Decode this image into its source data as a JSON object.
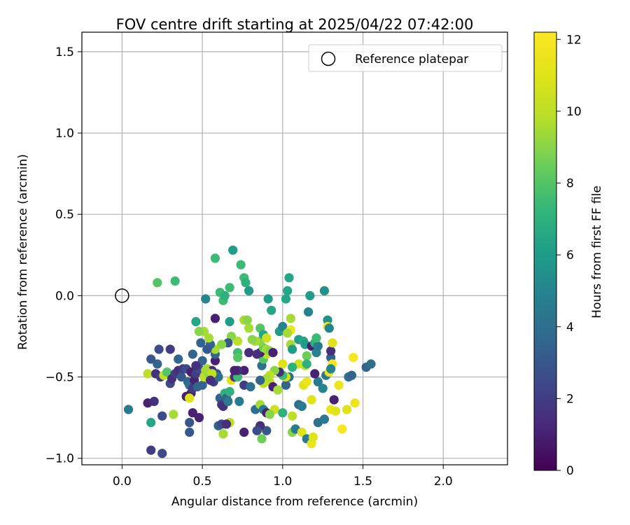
{
  "chart_data": {
    "type": "scatter",
    "title": "FOV centre drift starting at 2025/04/22 07:42:00",
    "xlabel": "Angular distance from reference (arcmin)",
    "ylabel": "Rotation from reference (arcmin)",
    "xlim": [
      -0.25,
      2.4
    ],
    "ylim": [
      -1.04,
      1.62
    ],
    "xticks": [
      0.0,
      0.5,
      1.0,
      1.5,
      2.0
    ],
    "xtick_labels": [
      "0.0",
      "0.5",
      "1.0",
      "1.5",
      "2.0"
    ],
    "yticks": [
      -1.0,
      -0.5,
      0.0,
      0.5,
      1.0,
      1.5
    ],
    "ytick_labels": [
      "−1.0",
      "−0.5",
      "0.0",
      "0.5",
      "1.0",
      "1.5"
    ],
    "grid": true,
    "legend": {
      "position": "top-right",
      "entries": [
        {
          "label": "Reference platepar",
          "marker": "open-circle"
        }
      ]
    },
    "reference_point": {
      "x": 0.0,
      "y": 0.0
    },
    "colorbar": {
      "label": "Hours from first FF file",
      "colormap": "viridis",
      "range": [
        0,
        12.2
      ],
      "ticks": [
        0,
        2,
        4,
        6,
        8,
        10,
        12
      ],
      "tick_labels": [
        "0",
        "2",
        "4",
        "6",
        "8",
        "10",
        "12"
      ]
    },
    "points": [
      {
        "x": 0.04,
        "y": -0.7,
        "h": 4.5
      },
      {
        "x": 0.16,
        "y": -0.66,
        "h": 1.0
      },
      {
        "x": 0.2,
        "y": -0.65,
        "h": 1.5
      },
      {
        "x": 0.18,
        "y": -0.95,
        "h": 2.0
      },
      {
        "x": 0.25,
        "y": -0.97,
        "h": 2.5
      },
      {
        "x": 0.18,
        "y": -0.78,
        "h": 6.5
      },
      {
        "x": 0.25,
        "y": -0.74,
        "h": 2.5
      },
      {
        "x": 0.32,
        "y": -0.73,
        "h": 9.5
      },
      {
        "x": 0.18,
        "y": -0.39,
        "h": 3.0
      },
      {
        "x": 0.22,
        "y": -0.42,
        "h": 3.5
      },
      {
        "x": 0.23,
        "y": -0.33,
        "h": 2.5
      },
      {
        "x": 0.3,
        "y": -0.33,
        "h": 2.0
      },
      {
        "x": 0.16,
        "y": -0.48,
        "h": 10.0
      },
      {
        "x": 0.21,
        "y": -0.48,
        "h": 1.5
      },
      {
        "x": 0.24,
        "y": -0.5,
        "h": 2.0
      },
      {
        "x": 0.26,
        "y": -0.49,
        "h": 10.0
      },
      {
        "x": 0.28,
        "y": -0.47,
        "h": 8.0
      },
      {
        "x": 0.3,
        "y": -0.54,
        "h": 2.5
      },
      {
        "x": 0.31,
        "y": -0.51,
        "h": 1.5
      },
      {
        "x": 0.33,
        "y": -0.48,
        "h": 2.0
      },
      {
        "x": 0.35,
        "y": -0.46,
        "h": 1.5
      },
      {
        "x": 0.35,
        "y": -0.39,
        "h": 3.5
      },
      {
        "x": 0.37,
        "y": -0.5,
        "h": 3.0
      },
      {
        "x": 0.38,
        "y": -0.45,
        "h": 2.0
      },
      {
        "x": 0.4,
        "y": -0.45,
        "h": 2.5
      },
      {
        "x": 0.41,
        "y": -0.53,
        "h": 3.5
      },
      {
        "x": 0.42,
        "y": -0.55,
        "h": 4.0
      },
      {
        "x": 0.43,
        "y": -0.47,
        "h": 1.0
      },
      {
        "x": 0.43,
        "y": -0.6,
        "h": 1.0
      },
      {
        "x": 0.44,
        "y": -0.57,
        "h": 2.0
      },
      {
        "x": 0.45,
        "y": -0.52,
        "h": 1.0
      },
      {
        "x": 0.46,
        "y": -0.48,
        "h": 2.0
      },
      {
        "x": 0.47,
        "y": -0.56,
        "h": 3.5
      },
      {
        "x": 0.48,
        "y": -0.45,
        "h": 2.5
      },
      {
        "x": 0.4,
        "y": -0.62,
        "h": 1.0
      },
      {
        "x": 0.42,
        "y": -0.63,
        "h": 11.0
      },
      {
        "x": 0.42,
        "y": -0.78,
        "h": 3.0
      },
      {
        "x": 0.42,
        "y": -0.84,
        "h": 3.0
      },
      {
        "x": 0.44,
        "y": -0.72,
        "h": 1.0
      },
      {
        "x": 0.48,
        "y": -0.75,
        "h": 1.0
      },
      {
        "x": 0.5,
        "y": -0.55,
        "h": 3.5
      },
      {
        "x": 0.51,
        "y": -0.5,
        "h": 10.0
      },
      {
        "x": 0.53,
        "y": -0.45,
        "h": 9.5
      },
      {
        "x": 0.54,
        "y": -0.48,
        "h": 9.0
      },
      {
        "x": 0.56,
        "y": -0.46,
        "h": 1.5
      },
      {
        "x": 0.57,
        "y": -0.53,
        "h": 2.0
      },
      {
        "x": 0.58,
        "y": -0.4,
        "h": 1.0
      },
      {
        "x": 0.59,
        "y": -0.48,
        "h": 3.0
      },
      {
        "x": 0.6,
        "y": -0.5,
        "h": 4.0
      },
      {
        "x": 0.61,
        "y": -0.63,
        "h": 3.5
      },
      {
        "x": 0.62,
        "y": -0.67,
        "h": 2.0
      },
      {
        "x": 0.63,
        "y": -0.68,
        "h": 1.5
      },
      {
        "x": 0.64,
        "y": -0.6,
        "h": 7.0
      },
      {
        "x": 0.65,
        "y": -0.63,
        "h": 3.5
      },
      {
        "x": 0.66,
        "y": -0.65,
        "h": 4.5
      },
      {
        "x": 0.67,
        "y": -0.59,
        "h": 7.0
      },
      {
        "x": 0.68,
        "y": -0.52,
        "h": 11.0
      },
      {
        "x": 0.7,
        "y": -0.5,
        "h": 1.5
      },
      {
        "x": 0.72,
        "y": -0.5,
        "h": 7.5
      },
      {
        "x": 0.76,
        "y": -0.55,
        "h": 2.0
      },
      {
        "x": 0.6,
        "y": -0.8,
        "h": 3.5
      },
      {
        "x": 0.62,
        "y": -0.79,
        "h": 2.5
      },
      {
        "x": 0.63,
        "y": -0.85,
        "h": 9.5
      },
      {
        "x": 0.67,
        "y": -0.78,
        "h": 10.0
      },
      {
        "x": 0.73,
        "y": -0.65,
        "h": 4.5
      },
      {
        "x": 0.76,
        "y": -0.84,
        "h": 1.0
      },
      {
        "x": 0.8,
        "y": -0.56,
        "h": 4.0
      },
      {
        "x": 0.83,
        "y": -0.7,
        "h": 4.0
      },
      {
        "x": 0.85,
        "y": -0.82,
        "h": 10.0
      },
      {
        "x": 0.87,
        "y": -0.88,
        "h": 8.5
      },
      {
        "x": 0.9,
        "y": -0.83,
        "h": 3.0
      },
      {
        "x": 0.86,
        "y": -0.8,
        "h": 1.5
      },
      {
        "x": 0.86,
        "y": -0.67,
        "h": 9.5
      },
      {
        "x": 0.88,
        "y": -0.7,
        "h": 4.5
      },
      {
        "x": 0.9,
        "y": -0.72,
        "h": 1.0
      },
      {
        "x": 0.9,
        "y": -0.52,
        "h": 9.0
      },
      {
        "x": 0.92,
        "y": -0.53,
        "h": 10.0
      },
      {
        "x": 0.94,
        "y": -0.56,
        "h": 1.0
      },
      {
        "x": 0.95,
        "y": -0.7,
        "h": 10.5
      },
      {
        "x": 0.97,
        "y": -0.58,
        "h": 9.5
      },
      {
        "x": 0.92,
        "y": -0.73,
        "h": 9.0
      },
      {
        "x": 1.0,
        "y": -0.72,
        "h": 7.0
      },
      {
        "x": 1.02,
        "y": -0.55,
        "h": 3.5
      },
      {
        "x": 1.04,
        "y": -0.5,
        "h": 4.0
      },
      {
        "x": 1.06,
        "y": -0.74,
        "h": 10.0
      },
      {
        "x": 1.06,
        "y": -0.84,
        "h": 9.0
      },
      {
        "x": 1.08,
        "y": -0.82,
        "h": 4.5
      },
      {
        "x": 1.1,
        "y": -0.67,
        "h": 4.0
      },
      {
        "x": 1.12,
        "y": -0.68,
        "h": 4.5
      },
      {
        "x": 1.12,
        "y": -0.84,
        "h": 11.0
      },
      {
        "x": 1.15,
        "y": -0.88,
        "h": 4.5
      },
      {
        "x": 1.18,
        "y": -0.91,
        "h": 11.5
      },
      {
        "x": 1.19,
        "y": -0.87,
        "h": 11.0
      },
      {
        "x": 1.13,
        "y": -0.55,
        "h": 11.0
      },
      {
        "x": 1.15,
        "y": -0.53,
        "h": 11.5
      },
      {
        "x": 1.18,
        "y": -0.64,
        "h": 11.0
      },
      {
        "x": 1.22,
        "y": -0.53,
        "h": 4.5
      },
      {
        "x": 1.25,
        "y": -0.57,
        "h": 5.0
      },
      {
        "x": 1.22,
        "y": -0.78,
        "h": 4.0
      },
      {
        "x": 1.26,
        "y": -0.76,
        "h": 4.5
      },
      {
        "x": 1.3,
        "y": -0.7,
        "h": 11.5
      },
      {
        "x": 1.32,
        "y": -0.64,
        "h": 1.0
      },
      {
        "x": 1.33,
        "y": -0.71,
        "h": 11.0
      },
      {
        "x": 1.35,
        "y": -0.55,
        "h": 11.5
      },
      {
        "x": 1.37,
        "y": -0.82,
        "h": 12.0
      },
      {
        "x": 1.4,
        "y": -0.7,
        "h": 11.0
      },
      {
        "x": 1.41,
        "y": -0.5,
        "h": 4.0
      },
      {
        "x": 1.43,
        "y": -0.49,
        "h": 3.5
      },
      {
        "x": 1.45,
        "y": -0.66,
        "h": 11.5
      },
      {
        "x": 1.44,
        "y": -0.38,
        "h": 12.0
      },
      {
        "x": 1.52,
        "y": -0.44,
        "h": 3.5
      },
      {
        "x": 1.55,
        "y": -0.42,
        "h": 4.0
      },
      {
        "x": 1.27,
        "y": -0.49,
        "h": 4.5
      },
      {
        "x": 1.29,
        "y": -0.47,
        "h": 11.5
      },
      {
        "x": 1.2,
        "y": -0.48,
        "h": 1.0
      },
      {
        "x": 1.14,
        "y": -0.43,
        "h": 10.0
      },
      {
        "x": 1.1,
        "y": -0.42,
        "h": 10.5
      },
      {
        "x": 1.06,
        "y": -0.44,
        "h": 7.0
      },
      {
        "x": 1.02,
        "y": -0.5,
        "h": 10.5
      },
      {
        "x": 1.0,
        "y": -0.49,
        "h": 7.5
      },
      {
        "x": 1.0,
        "y": -0.42,
        "h": 11.0
      },
      {
        "x": 0.98,
        "y": -0.47,
        "h": 1.5
      },
      {
        "x": 0.95,
        "y": -0.46,
        "h": 9.0
      },
      {
        "x": 0.92,
        "y": -0.49,
        "h": 10.0
      },
      {
        "x": 0.9,
        "y": -0.51,
        "h": 9.5
      },
      {
        "x": 0.88,
        "y": -0.54,
        "h": 10.0
      },
      {
        "x": 0.86,
        "y": -0.52,
        "h": 3.5
      },
      {
        "x": 0.87,
        "y": -0.43,
        "h": 4.0
      },
      {
        "x": 0.88,
        "y": -0.39,
        "h": 8.0
      },
      {
        "x": 0.9,
        "y": -0.36,
        "h": 10.0
      },
      {
        "x": 0.86,
        "y": -0.35,
        "h": 1.0
      },
      {
        "x": 0.84,
        "y": -0.36,
        "h": 1.5
      },
      {
        "x": 0.88,
        "y": -0.32,
        "h": 8.5
      },
      {
        "x": 0.9,
        "y": -0.33,
        "h": 9.5
      },
      {
        "x": 0.92,
        "y": -0.34,
        "h": 9.0
      },
      {
        "x": 0.94,
        "y": -0.35,
        "h": 1.0
      },
      {
        "x": 0.86,
        "y": -0.28,
        "h": 9.0
      },
      {
        "x": 0.83,
        "y": -0.28,
        "h": 9.5
      },
      {
        "x": 0.81,
        "y": -0.27,
        "h": 9.0
      },
      {
        "x": 0.86,
        "y": -0.2,
        "h": 8.0
      },
      {
        "x": 0.88,
        "y": -0.24,
        "h": 6.5
      },
      {
        "x": 0.9,
        "y": -0.26,
        "h": 10.5
      },
      {
        "x": 0.79,
        "y": -0.2,
        "h": 9.5
      },
      {
        "x": 0.76,
        "y": -0.15,
        "h": 9.5
      },
      {
        "x": 0.78,
        "y": -0.15,
        "h": 9.0
      },
      {
        "x": 0.79,
        "y": -0.35,
        "h": 1.5
      },
      {
        "x": 0.76,
        "y": -0.46,
        "h": 1.0
      },
      {
        "x": 0.72,
        "y": -0.46,
        "h": 1.5
      },
      {
        "x": 0.7,
        "y": -0.46,
        "h": 1.0
      },
      {
        "x": 0.72,
        "y": -0.35,
        "h": 7.5
      },
      {
        "x": 0.72,
        "y": -0.28,
        "h": 10.0
      },
      {
        "x": 0.72,
        "y": -0.38,
        "h": 8.0
      },
      {
        "x": 0.68,
        "y": -0.25,
        "h": 9.0
      },
      {
        "x": 0.66,
        "y": -0.29,
        "h": 3.0
      },
      {
        "x": 0.62,
        "y": -0.3,
        "h": 9.0
      },
      {
        "x": 0.58,
        "y": -0.36,
        "h": 3.5
      },
      {
        "x": 0.58,
        "y": -0.33,
        "h": 9.5
      },
      {
        "x": 0.55,
        "y": -0.3,
        "h": 3.5
      },
      {
        "x": 0.53,
        "y": -0.33,
        "h": 3.0
      },
      {
        "x": 0.54,
        "y": -0.26,
        "h": 9.5
      },
      {
        "x": 0.51,
        "y": -0.22,
        "h": 9.5
      },
      {
        "x": 0.48,
        "y": -0.22,
        "h": 9.0
      },
      {
        "x": 0.46,
        "y": -0.16,
        "h": 6.5
      },
      {
        "x": 0.49,
        "y": -0.29,
        "h": 3.5
      },
      {
        "x": 0.5,
        "y": -0.4,
        "h": 3.5
      },
      {
        "x": 0.46,
        "y": -0.43,
        "h": 1.5
      },
      {
        "x": 0.44,
        "y": -0.36,
        "h": 3.5
      },
      {
        "x": 0.52,
        "y": -0.46,
        "h": 9.5
      },
      {
        "x": 0.56,
        "y": -0.48,
        "h": 10.0
      },
      {
        "x": 0.58,
        "y": -0.14,
        "h": 1.0
      },
      {
        "x": 0.52,
        "y": -0.02,
        "h": 5.0
      },
      {
        "x": 0.58,
        "y": 0.23,
        "h": 7.5
      },
      {
        "x": 0.61,
        "y": 0.02,
        "h": 7.5
      },
      {
        "x": 0.63,
        "y": -0.03,
        "h": 7.5
      },
      {
        "x": 0.64,
        "y": 0.0,
        "h": 7.0
      },
      {
        "x": 0.67,
        "y": 0.05,
        "h": 7.5
      },
      {
        "x": 0.69,
        "y": 0.28,
        "h": 6.0
      },
      {
        "x": 0.74,
        "y": 0.19,
        "h": 7.5
      },
      {
        "x": 0.76,
        "y": 0.11,
        "h": 7.5
      },
      {
        "x": 0.77,
        "y": 0.08,
        "h": 7.0
      },
      {
        "x": 0.79,
        "y": 0.03,
        "h": 6.0
      },
      {
        "x": 0.67,
        "y": -0.16,
        "h": 6.0
      },
      {
        "x": 0.91,
        "y": -0.02,
        "h": 6.0
      },
      {
        "x": 0.93,
        "y": -0.09,
        "h": 6.5
      },
      {
        "x": 0.98,
        "y": -0.22,
        "h": 6.0
      },
      {
        "x": 1.0,
        "y": -0.19,
        "h": 5.0
      },
      {
        "x": 1.02,
        "y": -0.02,
        "h": 6.5
      },
      {
        "x": 1.03,
        "y": 0.03,
        "h": 6.5
      },
      {
        "x": 1.04,
        "y": 0.11,
        "h": 6.5
      },
      {
        "x": 1.05,
        "y": -0.14,
        "h": 9.5
      },
      {
        "x": 1.05,
        "y": -0.21,
        "h": 11.5
      },
      {
        "x": 1.03,
        "y": -0.23,
        "h": 9.5
      },
      {
        "x": 1.05,
        "y": -0.3,
        "h": 9.5
      },
      {
        "x": 1.06,
        "y": -0.33,
        "h": 6.0
      },
      {
        "x": 1.1,
        "y": -0.27,
        "h": 6.0
      },
      {
        "x": 1.13,
        "y": -0.28,
        "h": 6.5
      },
      {
        "x": 1.14,
        "y": -0.3,
        "h": 6.0
      },
      {
        "x": 1.17,
        "y": 0.0,
        "h": 6.0
      },
      {
        "x": 1.16,
        "y": -0.1,
        "h": 5.0
      },
      {
        "x": 1.15,
        "y": -0.37,
        "h": 8.5
      },
      {
        "x": 1.18,
        "y": -0.31,
        "h": 1.0
      },
      {
        "x": 1.2,
        "y": -0.29,
        "h": 7.0
      },
      {
        "x": 1.21,
        "y": -0.35,
        "h": 5.0
      },
      {
        "x": 1.22,
        "y": -0.31,
        "h": 4.5
      },
      {
        "x": 1.26,
        "y": 0.03,
        "h": 5.5
      },
      {
        "x": 1.28,
        "y": -0.15,
        "h": 5.5
      },
      {
        "x": 1.28,
        "y": -0.19,
        "h": 11.5
      },
      {
        "x": 1.29,
        "y": -0.2,
        "h": 5.0
      },
      {
        "x": 1.3,
        "y": -0.38,
        "h": 3.5
      },
      {
        "x": 1.31,
        "y": -0.42,
        "h": 12.0
      },
      {
        "x": 1.3,
        "y": -0.34,
        "h": 1.5
      },
      {
        "x": 1.31,
        "y": -0.29,
        "h": 11.0
      },
      {
        "x": 1.21,
        "y": -0.26,
        "h": 7.5
      },
      {
        "x": 0.22,
        "y": 0.08,
        "h": 8.0
      },
      {
        "x": 0.33,
        "y": 0.09,
        "h": 7.5
      },
      {
        "x": 1.3,
        "y": -0.45,
        "h": 5.0
      },
      {
        "x": 1.15,
        "y": -0.42,
        "h": 7.0
      },
      {
        "x": 0.84,
        "y": -0.83,
        "h": 2.5
      },
      {
        "x": 0.65,
        "y": -0.79,
        "h": 1.5
      },
      {
        "x": 0.55,
        "y": -0.52,
        "h": 1.5
      }
    ]
  }
}
